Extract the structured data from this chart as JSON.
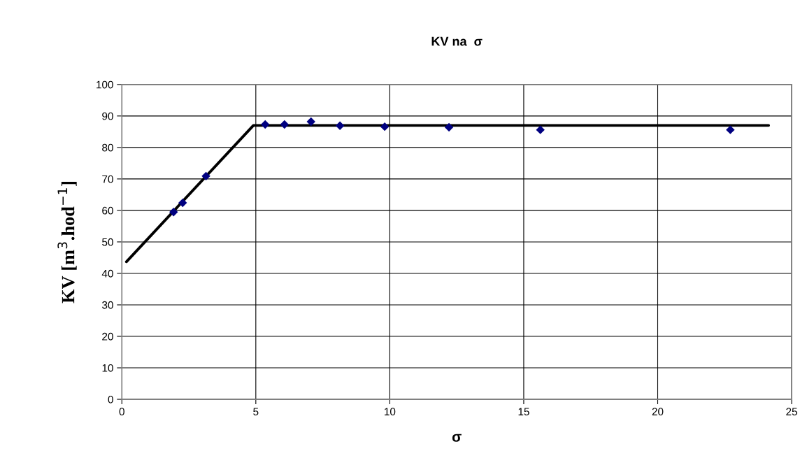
{
  "chart_data": {
    "type": "scatter",
    "title": "KV na  σ",
    "xlabel": "σ",
    "ylabel": "KV [m$^{3}$.hod$^{−1}$]",
    "series": [
      {
        "color": "#000080",
        "marker": "diamond",
        "x": [
          1.93,
          2.27,
          3.14,
          5.35,
          6.07,
          7.06,
          8.14,
          9.81,
          12.21,
          15.62,
          22.71
        ],
        "values": [
          59.5,
          62.4,
          70.9,
          87.3,
          87.3,
          88.2,
          86.9,
          86.6,
          86.4,
          85.6,
          85.6
        ]
      },
      {
        "type": "line",
        "color": "#000000",
        "marker": "none",
        "x": [
          0.17,
          4.91,
          24.14
        ],
        "values": [
          43.7,
          87.0,
          87.0
        ]
      }
    ],
    "xlim": [
      0,
      25
    ],
    "xticks": [
      0,
      5,
      10,
      15,
      20,
      25
    ],
    "ylim": [
      0,
      100
    ],
    "yticks": [
      0,
      10,
      20,
      30,
      40,
      50,
      60,
      70,
      80,
      90,
      100
    ],
    "grid": true
  }
}
